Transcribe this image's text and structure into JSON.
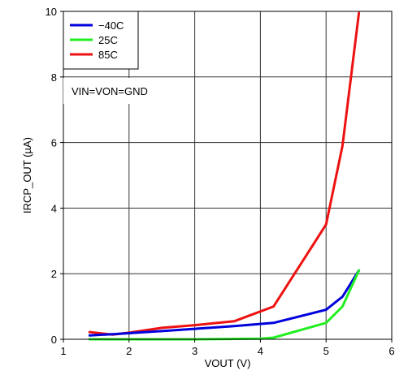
{
  "chart_data": {
    "type": "line",
    "xlabel": "VOUT (V)",
    "ylabel": "IRCP_OUT (µA)",
    "xlim": [
      1,
      6
    ],
    "ylim": [
      0,
      10
    ],
    "xticks": [
      1,
      2,
      3,
      4,
      5,
      6
    ],
    "yticks": [
      0,
      2,
      4,
      6,
      8,
      10
    ],
    "grid": true,
    "legend_position": "top-left",
    "annotation": "VIN=VON=GND",
    "series": [
      {
        "name": "−40C",
        "color": "#0000dd",
        "x": [
          1.4,
          1.8,
          2.5,
          3.0,
          3.6,
          4.2,
          5.0,
          5.25,
          5.5
        ],
        "y": [
          0.12,
          0.16,
          0.25,
          0.32,
          0.4,
          0.5,
          0.9,
          1.3,
          2.1
        ]
      },
      {
        "name": "25C",
        "color": "#22ee22",
        "x": [
          1.4,
          2.0,
          3.0,
          4.0,
          4.2,
          5.0,
          5.25,
          5.5
        ],
        "y": [
          0.0,
          0.0,
          0.0,
          0.02,
          0.05,
          0.5,
          1.0,
          2.1
        ]
      },
      {
        "name": "85C",
        "color": "#ee1111",
        "x": [
          1.4,
          1.75,
          2.0,
          2.5,
          3.0,
          3.6,
          4.2,
          5.0,
          5.25,
          5.5
        ],
        "y": [
          0.22,
          0.14,
          0.2,
          0.35,
          0.43,
          0.55,
          1.0,
          3.5,
          5.9,
          9.95
        ]
      }
    ]
  }
}
